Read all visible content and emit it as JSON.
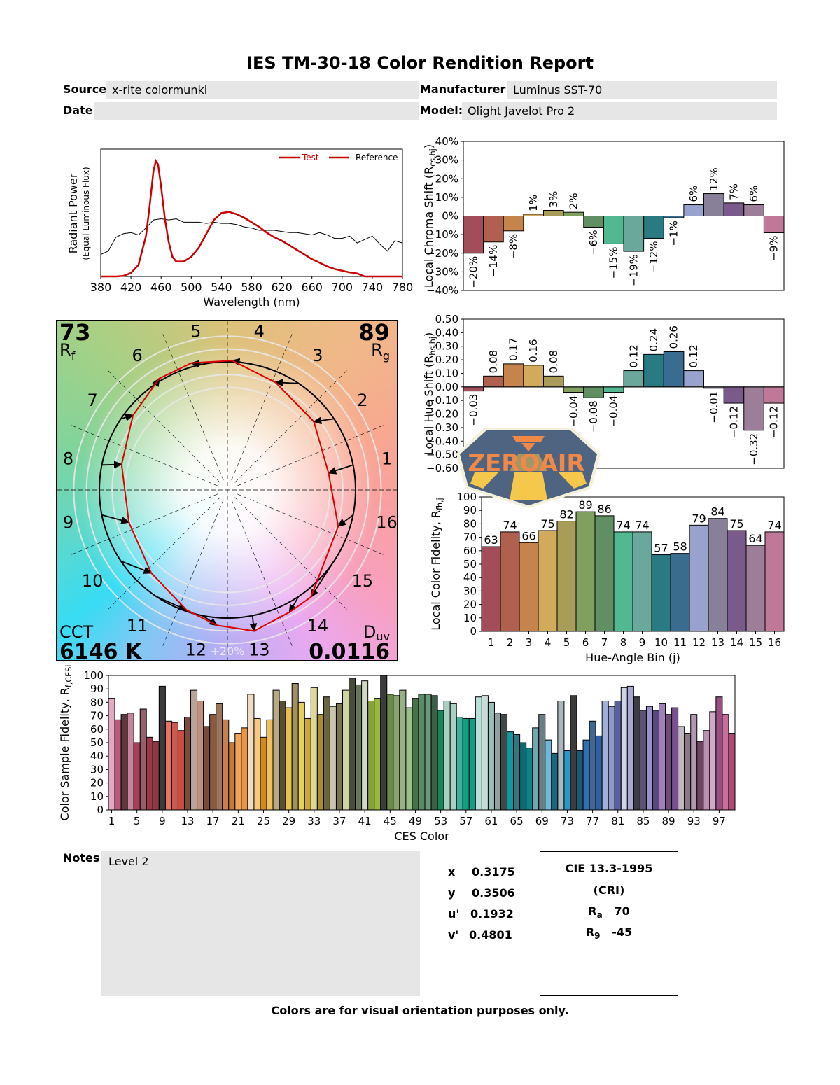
{
  "report": {
    "title": "IES TM-30-18 Color Rendition Report",
    "source_label": "Source:",
    "source_value": "x-rite colormunki",
    "date_label": "Date:",
    "date_value": "",
    "manufacturer_label": "Manufacturer:",
    "manufacturer_value": "Luminus SST-70",
    "model_label": "Model:",
    "model_value": "Olight Javelot Pro 2",
    "notes_label": "Notes:",
    "notes_value": "Level 2",
    "footer": "Colors are for visual orientation purposes only.",
    "watermark": "ZEROAIR.ORG"
  },
  "colorimetry": {
    "x_label": "x",
    "x_value": "0.3175",
    "y_label": "y",
    "y_value": "0.3506",
    "u_label": "u'",
    "u_value": "0.1932",
    "v_label": "v'",
    "v_value": "0.4801"
  },
  "cri": {
    "title": "CIE 13.3-1995",
    "subtitle": "(CRI)",
    "ra_label": "R",
    "ra_sub": "a",
    "ra_value": "70",
    "r9_label": "R",
    "r9_sub": "9",
    "r9_value": "-45"
  },
  "vector_graphic": {
    "rf_value": "73",
    "rf_label": "R",
    "rf_sub": "f",
    "rg_value": "89",
    "rg_label": "R",
    "rg_sub": "g",
    "cct_label": "CCT",
    "cct_value": "6146 K",
    "duv_label": "D",
    "duv_sub": "uv",
    "duv_value": "0.0116",
    "ring_label": "+20%",
    "bin_labels": [
      "1",
      "2",
      "3",
      "4",
      "5",
      "6",
      "7",
      "8",
      "9",
      "10",
      "11",
      "12",
      "13",
      "14",
      "15",
      "16"
    ],
    "test_color": "#dd0000",
    "reference_color": "#000000"
  },
  "bin_colors": [
    "#a34d5a",
    "#b0604e",
    "#c4844c",
    "#d2aa5c",
    "#a89c58",
    "#80a060",
    "#5f8f62",
    "#52b892",
    "#6aa89c",
    "#2a7a84",
    "#3a6c90",
    "#98a2cc",
    "#888098",
    "#7a5a8a",
    "#9c7e98",
    "#c07898"
  ],
  "chart_data": [
    {
      "id": "spectrum",
      "type": "line",
      "xlabel": "Wavelength (nm)",
      "ylabel": "Radiant Power",
      "ylabel_sub": "(Equal Luminous Flux)",
      "xlim": [
        380,
        780
      ],
      "xticks": [
        380,
        420,
        460,
        500,
        540,
        580,
        620,
        660,
        700,
        740,
        780
      ],
      "legend": "top-right",
      "series": [
        {
          "name": "Test",
          "color": "#cc0000",
          "x": [
            380,
            390,
            400,
            410,
            420,
            430,
            440,
            445,
            450,
            453,
            456,
            460,
            465,
            470,
            475,
            480,
            490,
            500,
            510,
            520,
            530,
            540,
            550,
            560,
            570,
            580,
            590,
            600,
            610,
            620,
            630,
            640,
            650,
            660,
            670,
            680,
            690,
            700,
            710,
            720,
            730,
            740,
            760,
            780
          ],
          "y": [
            0,
            0,
            0,
            0.005,
            0.03,
            0.1,
            0.35,
            0.62,
            0.92,
            1.0,
            0.97,
            0.78,
            0.5,
            0.3,
            0.17,
            0.13,
            0.13,
            0.17,
            0.25,
            0.37,
            0.49,
            0.55,
            0.56,
            0.54,
            0.51,
            0.47,
            0.43,
            0.38,
            0.34,
            0.31,
            0.27,
            0.23,
            0.19,
            0.15,
            0.12,
            0.087,
            0.065,
            0.05,
            0.035,
            0.026,
            0,
            0,
            0,
            0
          ]
        },
        {
          "name": "Reference",
          "color": "#000000",
          "x": [
            380,
            390,
            400,
            410,
            420,
            430,
            440,
            450,
            460,
            470,
            480,
            490,
            500,
            510,
            520,
            530,
            540,
            550,
            560,
            570,
            580,
            590,
            600,
            610,
            620,
            630,
            640,
            650,
            660,
            670,
            680,
            690,
            700,
            710,
            720,
            730,
            740,
            750,
            760,
            770,
            780
          ],
          "y": [
            0.19,
            0.22,
            0.34,
            0.37,
            0.38,
            0.36,
            0.42,
            0.49,
            0.5,
            0.49,
            0.5,
            0.47,
            0.47,
            0.47,
            0.46,
            0.47,
            0.46,
            0.46,
            0.45,
            0.43,
            0.42,
            0.4,
            0.4,
            0.4,
            0.39,
            0.38,
            0.38,
            0.37,
            0.36,
            0.38,
            0.36,
            0.33,
            0.33,
            0.35,
            0.29,
            0.32,
            0.35,
            0.28,
            0.22,
            0.31,
            0.29
          ]
        }
      ]
    },
    {
      "id": "chroma",
      "type": "bar",
      "ylabel": "Local Chroma Shift (R",
      "ylabel_sub": "cs,hj",
      "ylabel_end": ")",
      "ylim": [
        -40,
        40
      ],
      "yticks": [
        40,
        30,
        20,
        10,
        0,
        -10,
        -20,
        -30,
        -40
      ],
      "categories": [
        "1",
        "2",
        "3",
        "4",
        "5",
        "6",
        "7",
        "8",
        "9",
        "10",
        "11",
        "12",
        "13",
        "14",
        "15",
        "16"
      ],
      "values": [
        -20,
        -14,
        -8,
        1,
        3,
        2,
        -6,
        -15,
        -19,
        -12,
        -1,
        6,
        12,
        7,
        6,
        -9
      ],
      "unit": "%"
    },
    {
      "id": "hue",
      "type": "bar",
      "ylabel": "Local Hue Shift (R",
      "ylabel_sub": "hs,hj",
      "ylabel_end": ")",
      "ylim": [
        -0.6,
        0.5
      ],
      "yticks": [
        0.5,
        0.4,
        0.3,
        0.2,
        0.1,
        0,
        -0.1,
        -0.2,
        -0.3,
        -0.4,
        -0.5,
        -0.6
      ],
      "categories": [
        "1",
        "2",
        "3",
        "4",
        "5",
        "6",
        "7",
        "8",
        "9",
        "10",
        "11",
        "12",
        "13",
        "14",
        "15",
        "16"
      ],
      "values": [
        -0.03,
        0.08,
        0.17,
        0.16,
        0.08,
        -0.04,
        -0.08,
        -0.04,
        0.12,
        0.24,
        0.26,
        0.12,
        -0.01,
        -0.12,
        -0.32,
        -0.12
      ]
    },
    {
      "id": "fidelity",
      "type": "bar",
      "xlabel": "Hue-Angle Bin (j)",
      "ylabel": "Local Color Fidelity, R",
      "ylabel_sub": "fh,j",
      "ylim": [
        0,
        100
      ],
      "yticks": [
        0,
        10,
        20,
        30,
        40,
        50,
        60,
        70,
        80,
        90,
        100
      ],
      "categories": [
        "1",
        "2",
        "3",
        "4",
        "5",
        "6",
        "7",
        "8",
        "9",
        "10",
        "11",
        "12",
        "13",
        "14",
        "15",
        "16"
      ],
      "values": [
        63,
        74,
        66,
        75,
        82,
        89,
        86,
        74,
        74,
        57,
        58,
        79,
        84,
        75,
        64,
        74
      ]
    },
    {
      "id": "ces",
      "type": "bar",
      "xlabel": "CES Color",
      "ylabel": "Color Sample Fidelity, R",
      "ylabel_sub": "f,CESi",
      "ylim": [
        0,
        100
      ],
      "yticks": [
        0,
        10,
        20,
        30,
        40,
        50,
        60,
        70,
        80,
        90,
        100
      ],
      "xticks": [
        1,
        5,
        9,
        13,
        17,
        21,
        25,
        29,
        33,
        37,
        41,
        45,
        49,
        53,
        57,
        61,
        65,
        69,
        73,
        77,
        81,
        85,
        89,
        93,
        97
      ],
      "values": [
        83,
        67,
        71,
        72,
        50,
        75,
        54,
        51,
        92,
        66,
        65,
        59,
        69,
        89,
        81,
        62,
        71,
        79,
        67,
        50,
        57,
        61,
        86,
        68,
        54,
        67,
        89,
        81,
        76,
        94,
        80,
        68,
        91,
        71,
        84,
        77,
        79,
        89,
        98,
        93,
        96,
        81,
        83,
        100,
        86,
        85,
        89,
        76,
        83,
        86,
        86,
        85,
        74,
        81,
        79,
        69,
        68,
        68,
        84,
        85,
        80,
        72,
        71,
        58,
        56,
        50,
        46,
        61,
        71,
        52,
        42,
        81,
        44,
        85,
        44,
        52,
        66,
        55,
        81,
        77,
        81,
        91,
        92,
        84,
        74,
        77,
        74,
        79,
        71,
        76,
        62,
        57,
        71,
        51,
        59,
        73,
        84,
        71,
        57
      ],
      "colors": [
        "#e2aac2",
        "#b85a7a",
        "#5a3a3e",
        "#c8849a",
        "#a83e58",
        "#94606c",
        "#9a3848",
        "#8a3a44",
        "#3c3c3c",
        "#e87268",
        "#c85a50",
        "#c84e42",
        "#7a4a3a",
        "#b8a498",
        "#c0907c",
        "#7a4a36",
        "#8a5a40",
        "#9a7660",
        "#c8804e",
        "#c87a30",
        "#f0a458",
        "#e89448",
        "#f0dcc0",
        "#f8c880",
        "#d08a24",
        "#f0c060",
        "#b8aa82",
        "#5a4e36",
        "#e8c050",
        "#a09064",
        "#e8d060",
        "#c8a838",
        "#e0d898",
        "#a89030",
        "#6a6440",
        "#c8c4b0",
        "#7a7444",
        "#d0d4a0",
        "#4a4c3a",
        "#6a7456",
        "#d0d8c0",
        "#8aa040",
        "#9ab838",
        "#3c3c3c",
        "#6a8a48",
        "#8aa470",
        "#98b088",
        "#98c088",
        "#4a7048",
        "#5a8a68",
        "#6a9a78",
        "#3a6048",
        "#1a8458",
        "#a8d0c0",
        "#a8d0c0",
        "#40b09a",
        "#10a080",
        "#10a088",
        "#b8e0d8",
        "#c8dcd8",
        "#98c0b8",
        "#90a0a0",
        "#404848",
        "#1098a0",
        "#307880",
        "#106870",
        "#108088",
        "#70a8b0",
        "#6a7e84",
        "#70b8d8",
        "#186878",
        "#a8b8bc",
        "#2898c8",
        "#3c3c3c",
        "#205878",
        "#3070b0",
        "#406890",
        "#3060a0",
        "#a0b0d8",
        "#9098c8",
        "#5860a0",
        "#d0d4e8",
        "#a8a8d0",
        "#3c3c44",
        "#5a5470",
        "#9890c8",
        "#584880",
        "#a080b8",
        "#70487a",
        "#7a5090",
        "#c0b8c0",
        "#8a7888",
        "#b098b0",
        "#704460",
        "#b890b0",
        "#d0a8c8",
        "#985080",
        "#c8709a",
        "#b04a78"
      ]
    }
  ]
}
